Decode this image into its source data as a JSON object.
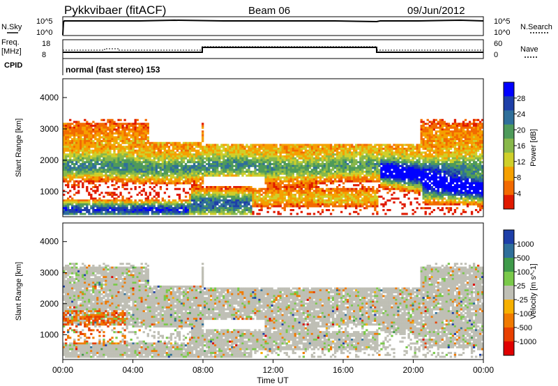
{
  "header": {
    "station": "Pykkvibaer (fitACF)",
    "beam": "Beam 06",
    "date": "09/Jun/2012"
  },
  "left_labels": {
    "nsky": "N.Sky",
    "freq": "Freq.",
    "freq_unit": "[MHz]",
    "cpid": "CPID"
  },
  "right_labels": {
    "nsearch": "N.Search",
    "nave": "Nave"
  },
  "cpid_text": "normal (fast stereo) 153",
  "panel_ticks": {
    "noise_left": [
      "10^5",
      "10^0"
    ],
    "noise_right": [
      "10^5",
      "10^0"
    ],
    "freq_left": [
      "18",
      "8"
    ],
    "nave_right": [
      "60",
      "0"
    ]
  },
  "chart_data": [
    {
      "type": "heatmap",
      "name": "power",
      "ylabel": "Slant Range [km]",
      "yticks": [
        "4000",
        "3000",
        "2000",
        "1000"
      ],
      "ylim": [
        200,
        4600
      ],
      "colorbar_label": "Power [dB]",
      "colorbar_ticks": [
        "28",
        "24",
        "20",
        "16",
        "12",
        "8",
        "4"
      ],
      "colorbar_colors": [
        "#0000ff",
        "#1e3fa8",
        "#2f6f9a",
        "#4e9a5a",
        "#88b84a",
        "#cfcf2a",
        "#f5a000",
        "#f26a00",
        "#e01a00"
      ]
    },
    {
      "type": "heatmap",
      "name": "velocity",
      "ylabel": "Slant Range [km]",
      "yticks": [
        "4000",
        "3000",
        "2000",
        "1000"
      ],
      "ylim": [
        200,
        4600
      ],
      "colorbar_label": "Velocity [m s^-1]",
      "colorbar_ticks": [
        "1000",
        "500",
        "100",
        "25",
        "-25",
        "-100",
        "-500",
        "-1000"
      ],
      "colorbar_colors": [
        "#1e3fa8",
        "#2f6f9a",
        "#3f9a4a",
        "#7ac94a",
        "#bfbfb5",
        "#f6b000",
        "#f07a00",
        "#e84000",
        "#e00000"
      ]
    }
  ],
  "xaxis": {
    "label": "Time UT",
    "ticks": [
      "00:00",
      "04:00",
      "08:00",
      "12:00",
      "16:00",
      "20:00",
      "00:00"
    ]
  }
}
